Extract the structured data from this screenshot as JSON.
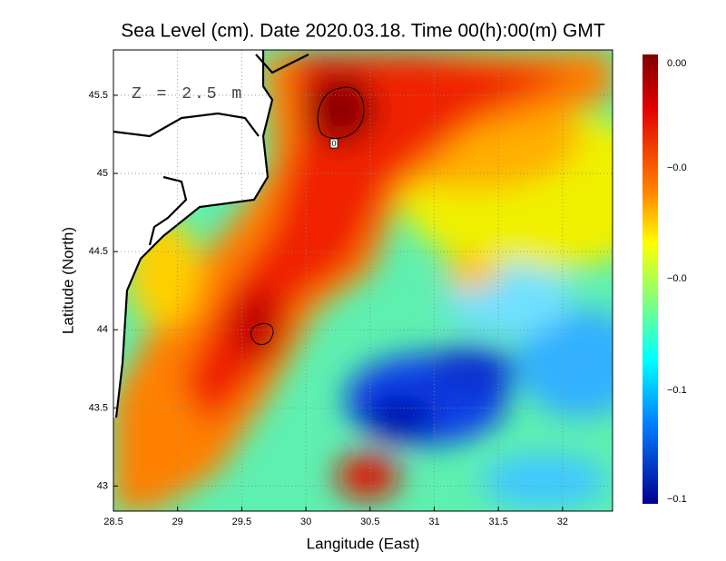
{
  "title": "Sea Level (cm). Date 2020.03.18. Time 00(h):00(m) GMT",
  "x_axis": {
    "label": "Langitude (East)",
    "lim": [
      28.5,
      32.39
    ],
    "ticks": [
      28.5,
      29,
      29.5,
      30,
      30.5,
      31,
      31.5,
      32
    ]
  },
  "y_axis": {
    "label": "Latitude (North)",
    "lim": [
      42.84,
      45.79
    ],
    "ticks": [
      43,
      43.5,
      44,
      44.5,
      45,
      45.5
    ]
  },
  "annotation": "Z = 2.5 m",
  "contour_label": "0",
  "colorbar": {
    "labels": [
      "0.00",
      "−0.0",
      "−0.0",
      "−0.1",
      "−0.1"
    ]
  }
}
